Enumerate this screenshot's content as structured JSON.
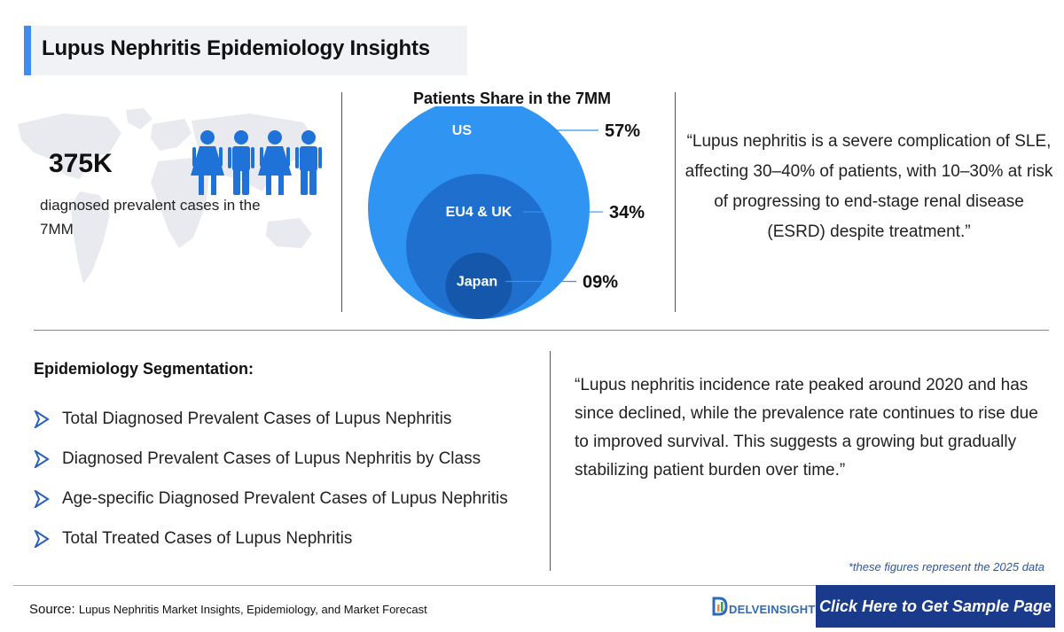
{
  "header": {
    "title": "Lupus Nephritis Epidemiology Insights"
  },
  "stat": {
    "value": "375K",
    "label": "diagnosed prevalent cases in the 7MM"
  },
  "chart_data": {
    "type": "bubble",
    "title": "Patients Share in the 7MM",
    "categories": [
      "US",
      "EU4 & UK",
      "Japan"
    ],
    "values": [
      57,
      34,
      9
    ],
    "value_labels": [
      "57%",
      "34%",
      "09%"
    ],
    "colors": [
      "#2f94f2",
      "#1f6fcf",
      "#1558ab"
    ]
  },
  "quote1": "“Lupus nephritis is a severe complication of SLE, affecting 30–40% of patients, with 10–30% at risk of progressing to end-stage renal disease (ESRD) despite treatment.”",
  "segmentation": {
    "title": "Epidemiology Segmentation:",
    "items": [
      "Total Diagnosed Prevalent Cases of Lupus Nephritis",
      "Diagnosed Prevalent Cases of Lupus Nephritis by Class",
      "Age-specific Diagnosed Prevalent Cases of Lupus Nephritis",
      "Total Treated Cases of Lupus Nephritis"
    ]
  },
  "quote2": "“Lupus nephritis incidence rate peaked around 2020 and has since declined, while the prevalence rate continues to rise due to improved survival. This suggests a growing but gradually stabilizing patient burden over time.”",
  "footnote": "*these figures represent the 2025 data",
  "footer": {
    "source_label": "Source:",
    "source_text": "Lupus Nephritis Market Insights, Epidemiology, and Market Forecast",
    "logo_text": "DELVEINSIGHT",
    "cta_label": "Click Here to Get Sample Page"
  },
  "colors": {
    "accent": "#3f8df0",
    "people": "#1f72d8",
    "cta": "#1a3a8c"
  }
}
